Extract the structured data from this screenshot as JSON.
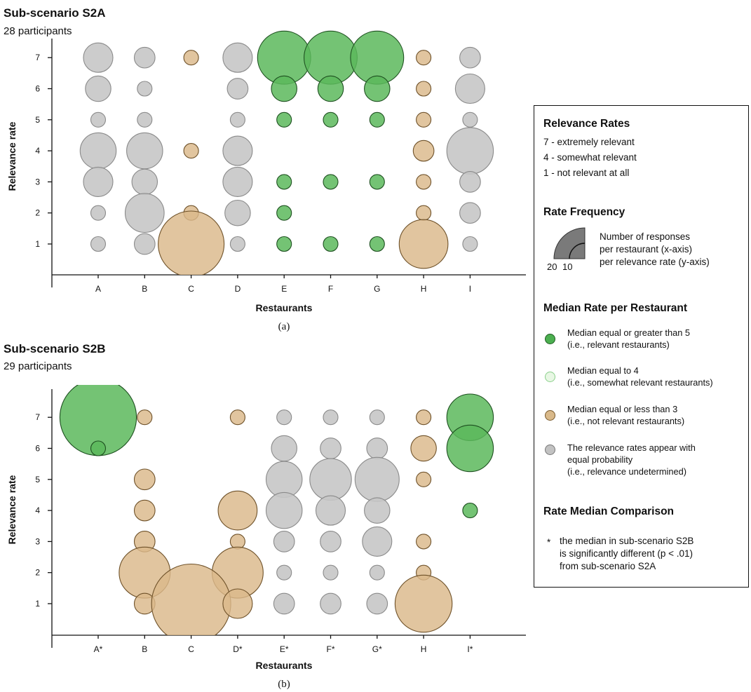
{
  "panels": [
    {
      "title": "Sub-scenario S2A",
      "subtitle": "28 participants",
      "ylabel": "Relevance rate",
      "xlabel": "Restaurants",
      "caption": "(a)",
      "categories": [
        "A",
        "B",
        "C",
        "D",
        "E",
        "F",
        "G",
        "H",
        "I"
      ]
    },
    {
      "title": "Sub-scenario S2B",
      "subtitle": "29 participants",
      "ylabel": "Relevance rate",
      "xlabel": "Restaurants",
      "caption": "(b)",
      "categories": [
        "A*",
        "B",
        "C",
        "D*",
        "E*",
        "F*",
        "G*",
        "H",
        "I*"
      ]
    }
  ],
  "chart_data": [
    {
      "type": "scatter",
      "title": "Sub-scenario S2A",
      "subtitle": "28 participants",
      "xlabel": "Restaurants",
      "ylabel": "Relevance rate",
      "categories": [
        "A",
        "B",
        "C",
        "D",
        "E",
        "F",
        "G",
        "H",
        "I"
      ],
      "yticks": [
        1,
        2,
        3,
        4,
        5,
        6,
        7
      ],
      "median_class": [
        "gray",
        "gray",
        "tan",
        "gray",
        "green",
        "green",
        "green",
        "tan",
        "gray"
      ],
      "counts_by_rate": {
        "7": [
          4,
          2,
          1,
          4,
          13,
          13,
          13,
          1,
          2
        ],
        "6": [
          3,
          1,
          0,
          2,
          3,
          3,
          3,
          1,
          4
        ],
        "5": [
          1,
          1,
          0,
          1,
          1,
          1,
          1,
          1,
          1
        ],
        "4": [
          6,
          6,
          1,
          4,
          0,
          0,
          0,
          2,
          10
        ],
        "3": [
          4,
          3,
          0,
          4,
          1,
          1,
          1,
          1,
          2
        ],
        "2": [
          1,
          7,
          1,
          3,
          1,
          0,
          0,
          1,
          2
        ],
        "1": [
          1,
          2,
          20,
          1,
          1,
          1,
          1,
          11,
          1
        ]
      }
    },
    {
      "type": "scatter",
      "title": "Sub-scenario S2B",
      "subtitle": "29 participants",
      "xlabel": "Restaurants",
      "ylabel": "Relevance rate",
      "categories": [
        "A*",
        "B",
        "C",
        "D*",
        "E*",
        "F*",
        "G*",
        "H",
        "I*"
      ],
      "yticks": [
        1,
        2,
        3,
        4,
        5,
        6,
        7
      ],
      "median_class": [
        "green",
        "tan",
        "tan",
        "tan",
        "gray",
        "gray",
        "gray",
        "tan",
        "green"
      ],
      "significant": [
        true,
        false,
        false,
        true,
        true,
        true,
        true,
        false,
        true
      ],
      "counts_by_rate": {
        "7": [
          27,
          1,
          0,
          1,
          1,
          1,
          1,
          1,
          10
        ],
        "6": [
          1,
          0,
          0,
          0,
          3,
          2,
          2,
          3,
          10
        ],
        "5": [
          0,
          2,
          0,
          0,
          6,
          8,
          9,
          1,
          0
        ],
        "4": [
          0,
          2,
          0,
          7,
          6,
          4,
          3,
          0,
          1
        ],
        "3": [
          0,
          2,
          0,
          1,
          2,
          2,
          4,
          1,
          0
        ],
        "2": [
          0,
          12,
          0,
          12,
          1,
          1,
          1,
          1,
          0
        ],
        "1": [
          0,
          2,
          29,
          4,
          2,
          2,
          2,
          15,
          0
        ]
      }
    }
  ],
  "legend": {
    "relevance_title": "Relevance Rates",
    "relevance_lines": [
      "7 - extremely relevant",
      "4 - somewhat relevant",
      "1 - not relevant at all"
    ],
    "frequency_title": "Rate Frequency",
    "frequency_text": "Number of responses\nper restaurant (x-axis)\nper relevance rate (y-axis)",
    "frequency_n20": "20",
    "frequency_n10": "10",
    "median_title": "Median Rate per Restaurant",
    "median_items": [
      {
        "text": "Median equal or greater than 5\n(i.e., relevant restaurants)",
        "fill": "#4caf50",
        "stroke": "#1f5e22"
      },
      {
        "text": "Median equal to 4\n(i.e., somewhat relevant restaurants)",
        "fill": "#e8f7e4",
        "stroke": "#8bd08b"
      },
      {
        "text": "Median equal or less than 3\n(i.e., not relevant restaurants)",
        "fill": "#d9b98a",
        "stroke": "#7a5a2c"
      },
      {
        "text": "The relevance rates appear with\nequal probability\n(i.e., relevance undetermined)",
        "fill": "#c2c2c2",
        "stroke": "#777777"
      }
    ],
    "comparison_title": "Rate Median Comparison",
    "comparison_star": "*",
    "comparison_text": "the median in sub-scenario S2B\nis significantly different (p < .01)\nfrom sub-scenario S2A"
  },
  "colors": {
    "green_fill": "#5cb85c",
    "green_stroke": "#1d4f1f",
    "tan_fill": "#dbb88a",
    "tan_stroke": "#6e5129",
    "gray_fill": "#c6c6c6",
    "gray_stroke": "#8a8a8a"
  }
}
